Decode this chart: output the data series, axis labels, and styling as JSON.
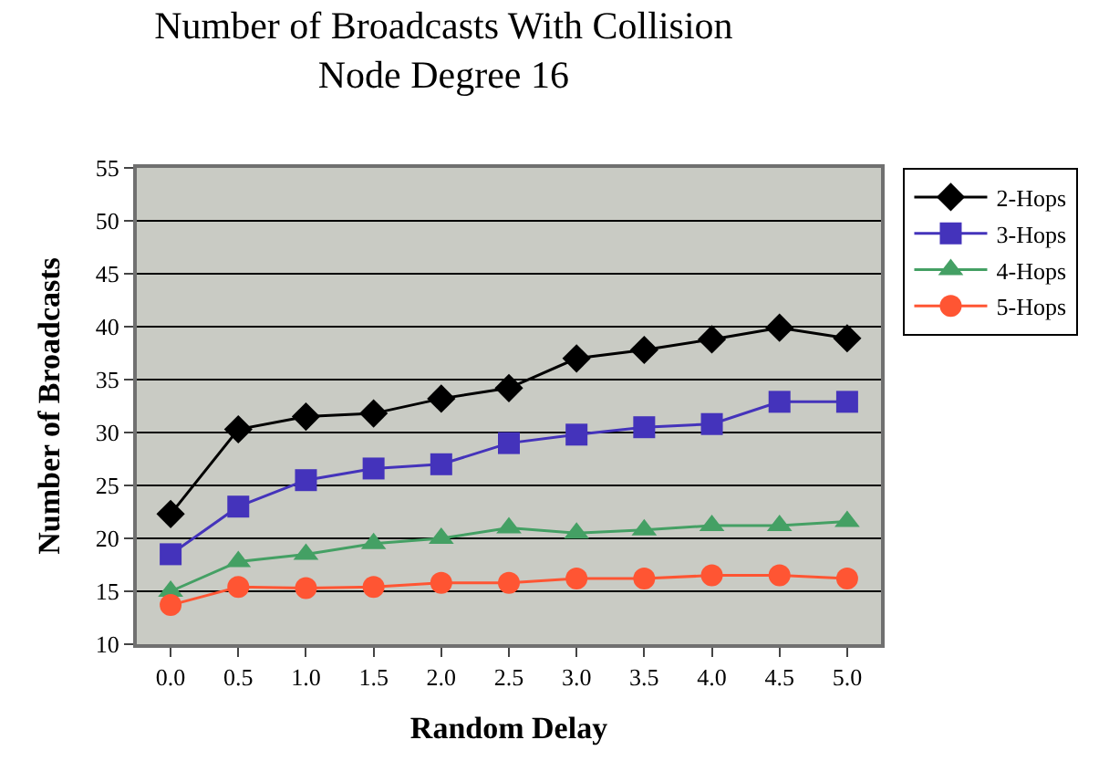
{
  "chart_data": {
    "type": "line",
    "title": "Number of Broadcasts With Collision\nNode Degree 16",
    "xlabel": "Random Delay",
    "ylabel": "Number of Broadcasts",
    "categories": [
      "0.0",
      "0.5",
      "1.0",
      "1.5",
      "2.0",
      "2.5",
      "3.0",
      "3.5",
      "4.0",
      "4.5",
      "5.0"
    ],
    "ylim": [
      10,
      55
    ],
    "yticks": [
      10,
      15,
      20,
      25,
      30,
      35,
      40,
      45,
      50,
      55
    ],
    "grid": "y",
    "legend": "right",
    "series": [
      {
        "name": "2-Hops",
        "color": "#000000",
        "marker": "diamond",
        "values": [
          22.3,
          30.3,
          31.5,
          31.8,
          33.2,
          34.2,
          37,
          37.8,
          38.8,
          39.9,
          38.9
        ]
      },
      {
        "name": "3-Hops",
        "color": "#4433bb",
        "marker": "square",
        "values": [
          18.5,
          23,
          25.5,
          26.6,
          27,
          29,
          29.8,
          30.5,
          30.8,
          32.9,
          32.9
        ]
      },
      {
        "name": "4-Hops",
        "color": "#44a064",
        "marker": "triangle",
        "values": [
          15,
          17.8,
          18.5,
          19.5,
          20,
          21,
          20.5,
          20.8,
          21.2,
          21.2,
          21.6
        ]
      },
      {
        "name": "5-Hops",
        "color": "#ff5533",
        "marker": "circle",
        "values": [
          13.7,
          15.4,
          15.3,
          15.4,
          15.8,
          15.8,
          16.2,
          16.2,
          16.5,
          16.5,
          16.2
        ]
      }
    ]
  }
}
